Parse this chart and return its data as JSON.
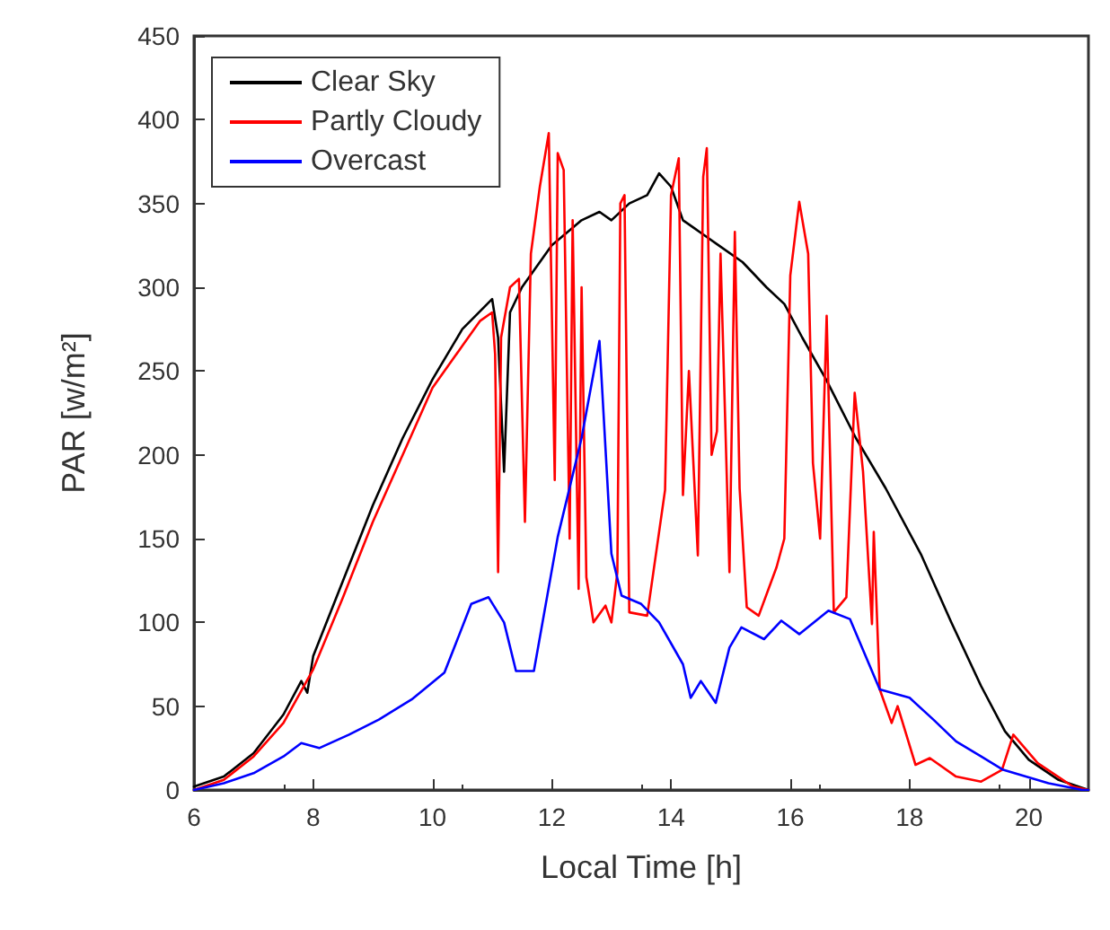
{
  "chart_data": {
    "type": "line",
    "xlabel": "Local Time [h]",
    "ylabel": "PAR [w/m²]",
    "xlim": [
      6,
      21
    ],
    "xticks": [
      6,
      8,
      10,
      12,
      14,
      16,
      18,
      20
    ],
    "ylim": [
      0,
      450
    ],
    "yticks": [
      0,
      50,
      100,
      150,
      200,
      250,
      300,
      350,
      400,
      450
    ],
    "grid": false,
    "legend": "top left",
    "series": [
      {
        "name": "Clear Sky",
        "color": "#000000",
        "x": [
          6.0,
          6.5,
          7.0,
          7.5,
          7.8,
          7.9,
          8.0,
          8.5,
          9.0,
          9.5,
          10.0,
          10.5,
          11.0,
          11.1,
          11.2,
          11.3,
          11.5,
          12.0,
          12.5,
          12.8,
          13.0,
          13.3,
          13.6,
          13.8,
          14.0,
          14.2,
          14.4,
          14.6,
          14.8,
          15.2,
          15.6,
          15.9,
          16.2,
          16.6,
          17.1,
          17.6,
          18.2,
          18.7,
          19.2,
          19.6,
          20.0,
          20.5,
          21.0
        ],
        "values": [
          2,
          8,
          22,
          45,
          65,
          58,
          80,
          125,
          170,
          210,
          245,
          275,
          293,
          270,
          190,
          285,
          300,
          325,
          340,
          345,
          340,
          350,
          355,
          368,
          360,
          340,
          335,
          330,
          325,
          315,
          300,
          290,
          270,
          245,
          210,
          180,
          140,
          100,
          62,
          35,
          18,
          6,
          0
        ]
      },
      {
        "name": "Partly Cloudy",
        "color": "#ff0000",
        "x": [
          6.0,
          6.5,
          7.0,
          7.5,
          8.0,
          8.5,
          9.0,
          9.5,
          10.0,
          10.5,
          10.8,
          11.0,
          11.05,
          11.1,
          11.15,
          11.3,
          11.45,
          11.55,
          11.65,
          11.8,
          11.95,
          12.05,
          12.1,
          12.2,
          12.3,
          12.35,
          12.45,
          12.5,
          12.58,
          12.7,
          12.9,
          13.0,
          13.1,
          13.15,
          13.22,
          13.3,
          13.6,
          13.9,
          14.0,
          14.13,
          14.2,
          14.3,
          14.45,
          14.54,
          14.6,
          14.68,
          14.77,
          14.83,
          14.98,
          15.07,
          15.15,
          15.27,
          15.47,
          15.77,
          15.9,
          16.0,
          16.15,
          16.3,
          16.38,
          16.5,
          16.61,
          16.73,
          16.94,
          17.08,
          17.22,
          17.37,
          17.4,
          17.5,
          17.7,
          17.8,
          18.1,
          18.34,
          18.78,
          19.2,
          19.55,
          19.74,
          20.15,
          20.74,
          21.0
        ],
        "values": [
          0,
          6,
          20,
          40,
          72,
          115,
          160,
          200,
          240,
          265,
          280,
          285,
          260,
          130,
          270,
          300,
          305,
          160,
          320,
          360,
          392,
          185,
          380,
          370,
          150,
          340,
          120,
          300,
          127,
          100,
          110,
          100,
          130,
          350,
          355,
          106,
          104,
          179,
          355,
          377,
          176,
          250,
          140,
          366,
          383,
          200,
          214,
          320,
          130,
          333,
          180,
          109,
          104,
          133,
          150,
          307,
          351,
          320,
          195,
          150,
          283,
          106,
          115,
          237,
          190,
          99,
          154,
          60,
          40,
          50,
          15,
          19,
          8,
          5,
          12,
          33,
          16,
          2,
          0
        ]
      },
      {
        "name": "Overcast",
        "color": "#0000ff",
        "x": [
          6.0,
          6.5,
          7.0,
          7.5,
          7.8,
          8.1,
          8.6,
          9.1,
          9.65,
          10.2,
          10.65,
          10.94,
          11.2,
          11.4,
          11.7,
          12.1,
          12.5,
          12.8,
          13.0,
          13.17,
          13.5,
          13.8,
          14.2,
          14.33,
          14.5,
          14.75,
          14.98,
          15.18,
          15.56,
          15.85,
          16.15,
          16.64,
          17.0,
          17.5,
          18.0,
          18.4,
          18.78,
          19.2,
          19.57,
          20.33,
          20.9,
          21.0
        ],
        "values": [
          0,
          4,
          10,
          20,
          28,
          25,
          33,
          42,
          54,
          70,
          111,
          115,
          100,
          71,
          71,
          151,
          210,
          268,
          141,
          116,
          111,
          100,
          75,
          55,
          65,
          52,
          85,
          97,
          90,
          101,
          93,
          107,
          102,
          60,
          55,
          42,
          29,
          20,
          12,
          4,
          0,
          0
        ]
      }
    ]
  }
}
